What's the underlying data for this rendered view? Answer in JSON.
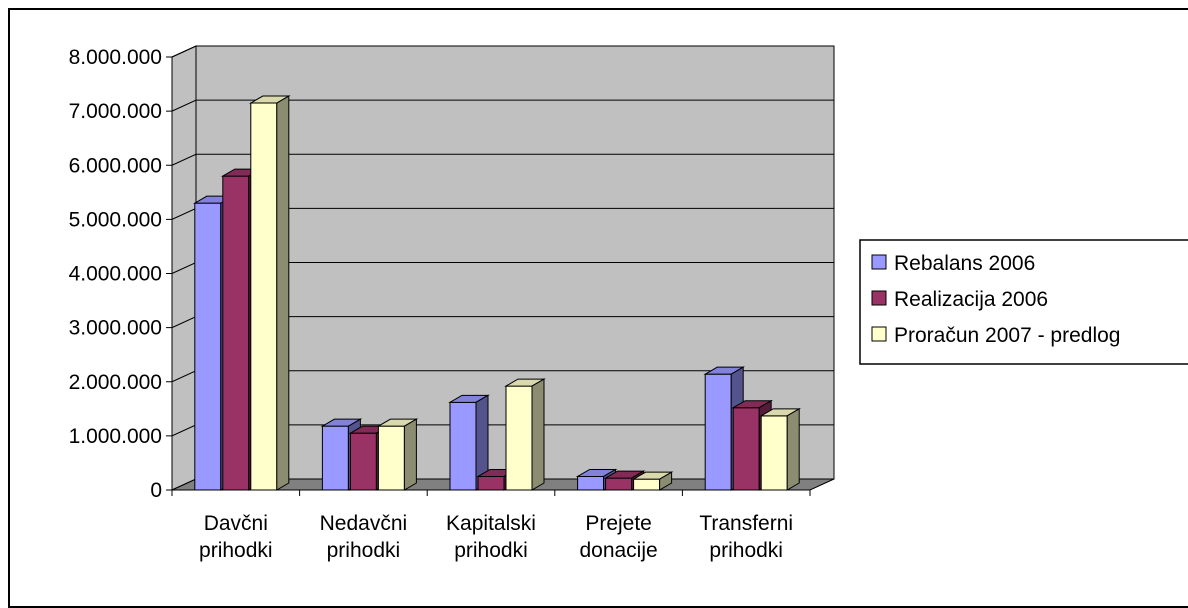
{
  "chart_data": {
    "type": "bar",
    "title": "",
    "xlabel": "",
    "ylabel": "",
    "categories": [
      [
        "Davčni",
        "prihodki"
      ],
      [
        "Nedavčni",
        "prihodki"
      ],
      [
        "Kapitalski",
        "prihodki"
      ],
      [
        "Prejete",
        "donacije"
      ],
      [
        "Transferni",
        "prihodki"
      ]
    ],
    "series": [
      {
        "name": "Rebalans 2006",
        "color": "#9999ff",
        "values": [
          5300000,
          1180000,
          1620000,
          250000,
          2140000
        ]
      },
      {
        "name": "Realizacija 2006",
        "color": "#993366",
        "values": [
          5800000,
          1050000,
          250000,
          220000,
          1520000
        ]
      },
      {
        "name": "Proračun 2007 - predlog",
        "color": "#ffffcc",
        "values": [
          7150000,
          1180000,
          1920000,
          200000,
          1370000
        ]
      }
    ],
    "ylim": [
      0,
      8000000
    ],
    "yticks": [
      "0",
      "1.000.000",
      "2.000.000",
      "3.000.000",
      "4.000.000",
      "5.000.000",
      "6.000.000",
      "7.000.000",
      "8.000.000"
    ],
    "grid": true,
    "legend_position": "right",
    "wall_color": "#c0c0c0",
    "floor_color": "#808080"
  }
}
